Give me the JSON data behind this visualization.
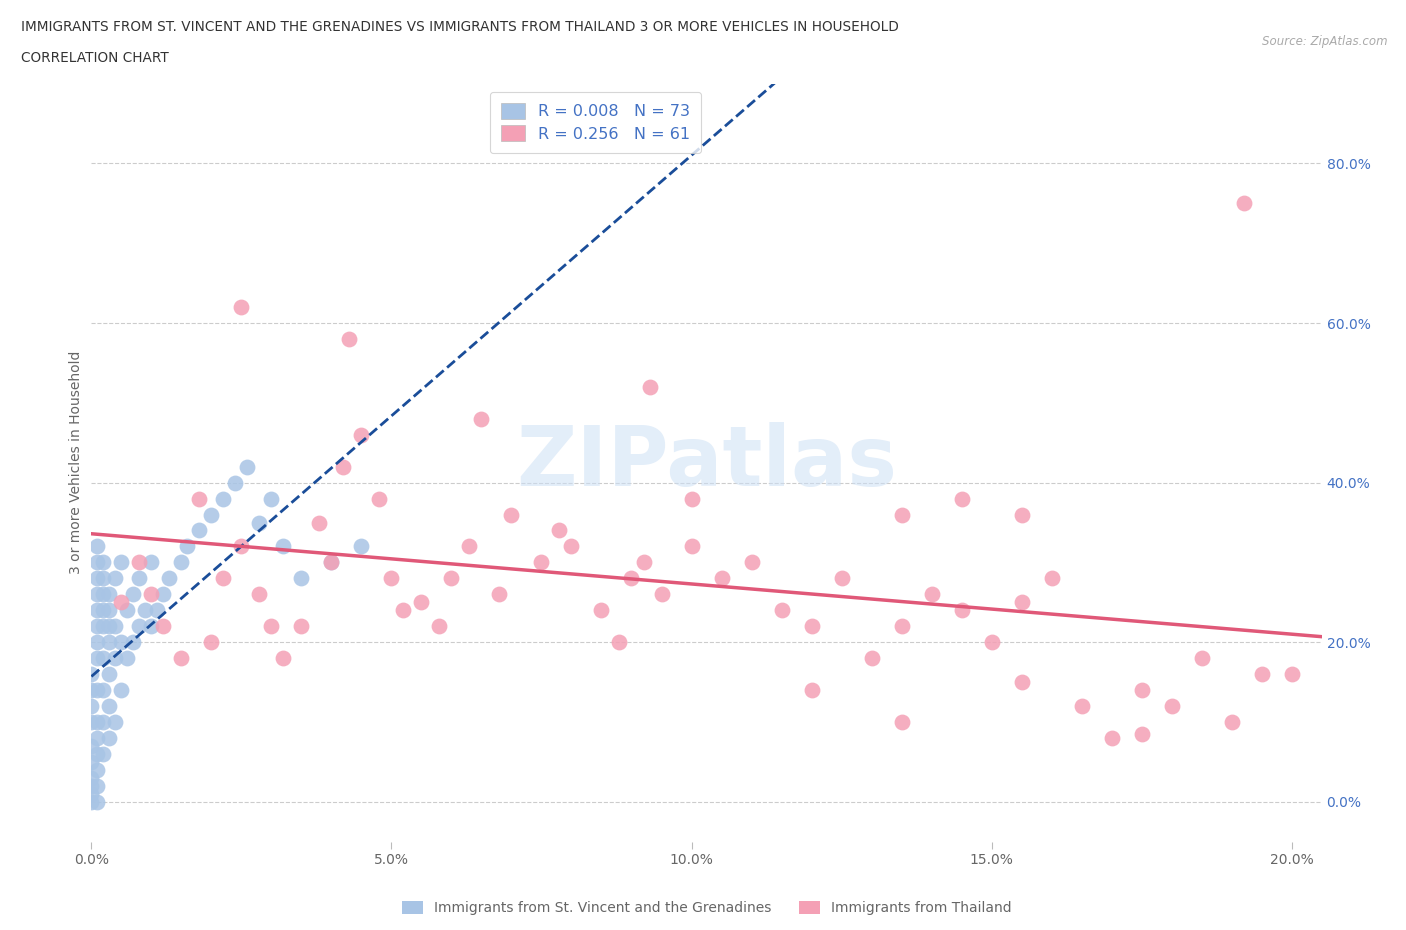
{
  "title_line1": "IMMIGRANTS FROM ST. VINCENT AND THE GRENADINES VS IMMIGRANTS FROM THAILAND 3 OR MORE VEHICLES IN HOUSEHOLD",
  "title_line2": "CORRELATION CHART",
  "source_text": "Source: ZipAtlas.com",
  "ylabel": "3 or more Vehicles in Household",
  "xlim": [
    0.0,
    0.205
  ],
  "ylim": [
    -0.05,
    0.9
  ],
  "xtick_vals": [
    0.0,
    0.05,
    0.1,
    0.15,
    0.2
  ],
  "xtick_labels": [
    "0.0%",
    "5.0%",
    "10.0%",
    "15.0%",
    "20.0%"
  ],
  "ytick_vals": [
    0.0,
    0.2,
    0.4,
    0.6,
    0.8
  ],
  "ytick_labels": [
    "0.0%",
    "20.0%",
    "40.0%",
    "60.0%",
    "80.0%"
  ],
  "legend_r1": "0.008",
  "legend_n1": "73",
  "legend_r2": "0.256",
  "legend_n2": "61",
  "color_blue_dot": "#a8c4e5",
  "color_pink_dot": "#f4a0b5",
  "color_blue_line": "#1a4d99",
  "color_pink_line": "#e05878",
  "color_blue_text": "#4472c4",
  "color_grid": "#cccccc",
  "color_axis_text": "#666666",
  "color_right_axis": "#4472c4",
  "legend_label_blue": "Immigrants from St. Vincent and the Grenadines",
  "legend_label_pink": "Immigrants from Thailand",
  "watermark": "ZIPatlas",
  "watermark_color": "#cce0f5",
  "figsize": [
    14.06,
    9.3
  ],
  "dpi": 100,
  "blue_x": [
    0.0,
    0.0,
    0.0,
    0.0,
    0.0,
    0.0,
    0.0,
    0.0,
    0.0,
    0.0,
    0.001,
    0.001,
    0.001,
    0.001,
    0.001,
    0.001,
    0.001,
    0.001,
    0.001,
    0.001,
    0.001,
    0.001,
    0.001,
    0.001,
    0.001,
    0.002,
    0.002,
    0.002,
    0.002,
    0.002,
    0.002,
    0.002,
    0.002,
    0.002,
    0.003,
    0.003,
    0.003,
    0.003,
    0.003,
    0.003,
    0.003,
    0.004,
    0.004,
    0.004,
    0.004,
    0.005,
    0.005,
    0.005,
    0.006,
    0.006,
    0.007,
    0.007,
    0.008,
    0.008,
    0.009,
    0.01,
    0.01,
    0.011,
    0.012,
    0.013,
    0.015,
    0.016,
    0.018,
    0.02,
    0.022,
    0.024,
    0.026,
    0.028,
    0.03,
    0.032,
    0.035,
    0.04,
    0.045
  ],
  "blue_y": [
    0.0,
    0.01,
    0.02,
    0.03,
    0.05,
    0.07,
    0.1,
    0.12,
    0.14,
    0.16,
    0.0,
    0.02,
    0.04,
    0.06,
    0.08,
    0.1,
    0.14,
    0.18,
    0.2,
    0.22,
    0.24,
    0.26,
    0.28,
    0.3,
    0.32,
    0.06,
    0.1,
    0.14,
    0.18,
    0.22,
    0.24,
    0.26,
    0.28,
    0.3,
    0.08,
    0.12,
    0.16,
    0.2,
    0.22,
    0.24,
    0.26,
    0.1,
    0.18,
    0.22,
    0.28,
    0.14,
    0.2,
    0.3,
    0.18,
    0.24,
    0.2,
    0.26,
    0.22,
    0.28,
    0.24,
    0.22,
    0.3,
    0.24,
    0.26,
    0.28,
    0.3,
    0.32,
    0.34,
    0.36,
    0.38,
    0.4,
    0.42,
    0.35,
    0.38,
    0.32,
    0.28,
    0.3,
    0.32
  ],
  "pink_x": [
    0.005,
    0.008,
    0.01,
    0.012,
    0.015,
    0.018,
    0.02,
    0.022,
    0.025,
    0.028,
    0.03,
    0.032,
    0.035,
    0.038,
    0.04,
    0.042,
    0.045,
    0.048,
    0.05,
    0.052,
    0.055,
    0.058,
    0.06,
    0.063,
    0.065,
    0.068,
    0.07,
    0.075,
    0.078,
    0.08,
    0.085,
    0.088,
    0.09,
    0.092,
    0.095,
    0.1,
    0.105,
    0.11,
    0.115,
    0.12,
    0.125,
    0.13,
    0.135,
    0.14,
    0.145,
    0.15,
    0.155,
    0.16,
    0.165,
    0.17,
    0.175,
    0.18,
    0.185,
    0.19,
    0.195,
    0.2,
    0.135,
    0.145,
    0.155,
    0.12,
    0.1
  ],
  "pink_y": [
    0.25,
    0.3,
    0.26,
    0.22,
    0.18,
    0.38,
    0.2,
    0.28,
    0.32,
    0.26,
    0.22,
    0.18,
    0.22,
    0.35,
    0.3,
    0.42,
    0.46,
    0.38,
    0.28,
    0.24,
    0.25,
    0.22,
    0.28,
    0.32,
    0.48,
    0.26,
    0.36,
    0.3,
    0.34,
    0.32,
    0.24,
    0.2,
    0.28,
    0.3,
    0.26,
    0.32,
    0.28,
    0.3,
    0.24,
    0.22,
    0.28,
    0.18,
    0.22,
    0.26,
    0.24,
    0.2,
    0.25,
    0.28,
    0.12,
    0.08,
    0.14,
    0.12,
    0.18,
    0.1,
    0.16,
    0.16,
    0.36,
    0.38,
    0.36,
    0.14,
    0.38
  ],
  "pink_outlier_x": [
    0.192,
    0.025,
    0.043,
    0.093,
    0.155,
    0.175,
    0.135
  ],
  "pink_outlier_y": [
    0.75,
    0.62,
    0.58,
    0.52,
    0.15,
    0.085,
    0.1
  ]
}
